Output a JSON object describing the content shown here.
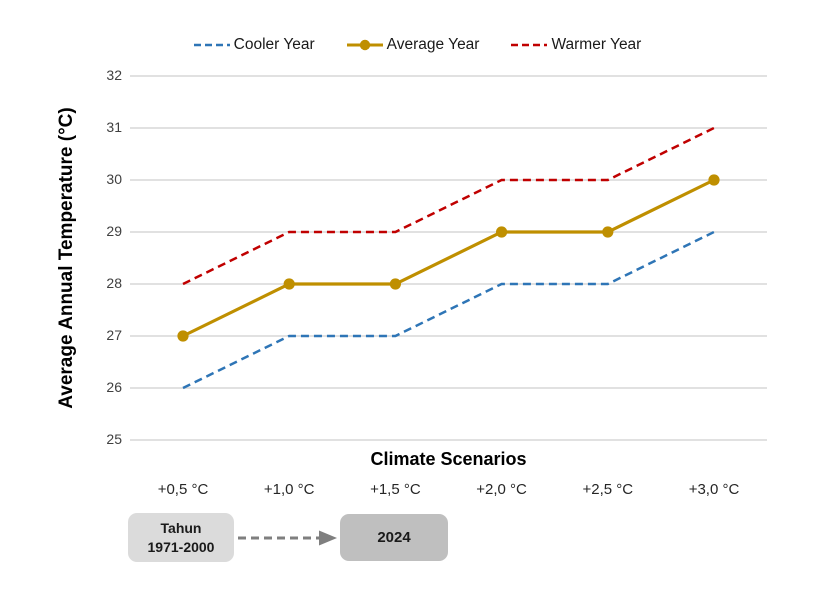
{
  "chart_data": {
    "type": "line",
    "title": "",
    "xlabel": "Climate Scenarios",
    "ylabel": "Average Annual Temperature (°C)",
    "categories": [
      "+0,5 °C",
      "+1,0 °C",
      "+1,5 °C",
      "+2,0 °C",
      "+2,5 °C",
      "+3,0 °C"
    ],
    "series": [
      {
        "name": "Cooler Year",
        "values": [
          26,
          27,
          27,
          28,
          28,
          29
        ],
        "color": "#2E75B6",
        "style": "dashed",
        "marker": false
      },
      {
        "name": "Average Year",
        "values": [
          27,
          28,
          28,
          29,
          29,
          30
        ],
        "color": "#BF8F00",
        "style": "solid",
        "marker": true
      },
      {
        "name": "Warmer Year",
        "values": [
          28,
          29,
          29,
          30,
          30,
          31
        ],
        "color": "#C00000",
        "style": "dashed",
        "marker": false
      }
    ],
    "ylim": [
      25,
      32
    ],
    "ytick_step": 1,
    "grid": "horizontal",
    "gridline_color": "#DDDDDD",
    "legend_position": "top"
  },
  "annotation": {
    "from_line1": "Tahun",
    "from_line2": "1971-2000",
    "to_label": "2024",
    "arrow_color": "#7F7F7F",
    "from_fill": "#DBDBDB",
    "to_fill": "#BFBFBF"
  }
}
